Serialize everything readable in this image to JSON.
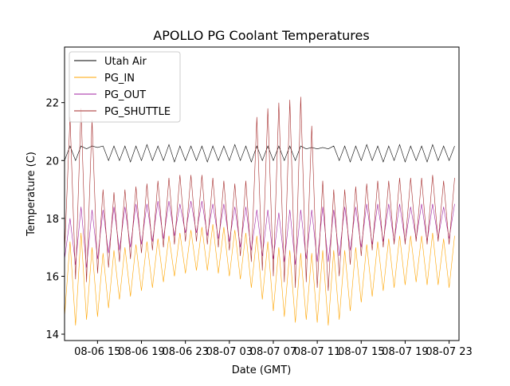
{
  "chart_data": {
    "type": "line",
    "title": "APOLLO PG Coolant Temperatures",
    "xlabel": "Date (GMT)",
    "ylabel": "Temperature (C)",
    "x_units": "hours since 08-06 00:00 GMT",
    "xlim": [
      12,
      47.9
    ],
    "ylim": [
      13.78,
      23.92
    ],
    "x_ticks": [
      {
        "value": 15,
        "label": "08-06 15"
      },
      {
        "value": 19,
        "label": "08-06 19"
      },
      {
        "value": 23,
        "label": "08-06 23"
      },
      {
        "value": 27,
        "label": "08-07 03"
      },
      {
        "value": 31,
        "label": "08-07 07"
      },
      {
        "value": 35,
        "label": "08-07 11"
      },
      {
        "value": 39,
        "label": "08-07 15"
      },
      {
        "value": 43,
        "label": "08-07 19"
      },
      {
        "value": 47,
        "label": "08-07 23"
      }
    ],
    "y_ticks": [
      {
        "value": 14,
        "label": "14"
      },
      {
        "value": 16,
        "label": "16"
      },
      {
        "value": 18,
        "label": "18"
      },
      {
        "value": 20,
        "label": "20"
      },
      {
        "value": 22,
        "label": "22"
      }
    ],
    "grid": false,
    "legend_position": "top-left",
    "x_start": 12,
    "x_step": 0.5,
    "series": [
      {
        "name": "Utah Air",
        "color": "#000000",
        "values": [
          20.0,
          20.5,
          20.0,
          20.5,
          20.4,
          20.5,
          20.45,
          20.5,
          20.0,
          20.5,
          20.0,
          20.5,
          19.95,
          20.5,
          20.0,
          20.55,
          20.0,
          20.5,
          20.0,
          20.55,
          19.95,
          20.5,
          20.0,
          20.5,
          20.0,
          20.5,
          19.95,
          20.5,
          20.0,
          20.5,
          20.0,
          20.55,
          20.0,
          20.5,
          19.95,
          20.5,
          20.0,
          20.5,
          20.0,
          20.5,
          20.0,
          20.5,
          20.0,
          20.5,
          20.4,
          20.45,
          20.4,
          20.45,
          20.4,
          20.5,
          20.0,
          20.5,
          19.95,
          20.5,
          20.0,
          20.55,
          20.0,
          20.5,
          19.95,
          20.5,
          20.0,
          20.55,
          19.95,
          20.5,
          20.0,
          20.5,
          19.95,
          20.55,
          20.0,
          20.5,
          20.0,
          20.5
        ]
      },
      {
        "name": "PG_IN",
        "color": "#ffa500",
        "values": [
          14.6,
          17.2,
          14.3,
          17.5,
          14.5,
          17.0,
          14.6,
          16.8,
          14.9,
          16.9,
          15.2,
          17.0,
          15.3,
          17.1,
          15.5,
          17.2,
          15.6,
          17.3,
          15.8,
          17.4,
          16.0,
          17.5,
          16.1,
          17.6,
          16.2,
          17.7,
          16.2,
          17.8,
          16.1,
          17.7,
          16.0,
          17.6,
          15.9,
          17.5,
          15.6,
          17.4,
          15.2,
          17.2,
          14.8,
          17.0,
          14.6,
          16.9,
          14.4,
          16.8,
          14.5,
          16.8,
          14.4,
          16.9,
          14.3,
          16.9,
          14.5,
          16.9,
          14.8,
          17.0,
          15.1,
          17.1,
          15.3,
          17.2,
          15.5,
          17.3,
          15.6,
          17.4,
          15.7,
          17.4,
          15.8,
          17.4,
          15.7,
          17.5,
          15.7,
          17.3,
          15.6,
          17.4
        ]
      },
      {
        "name": "PG_OUT",
        "color": "#a020a0",
        "values": [
          16.6,
          18.0,
          16.4,
          18.4,
          16.3,
          18.3,
          16.6,
          18.3,
          16.8,
          18.4,
          16.9,
          18.4,
          17.0,
          18.5,
          17.1,
          18.5,
          17.2,
          18.6,
          17.3,
          18.6,
          17.4,
          18.5,
          17.5,
          18.6,
          17.5,
          18.6,
          17.4,
          18.5,
          17.3,
          18.5,
          17.2,
          18.4,
          17.0,
          18.4,
          16.9,
          18.3,
          16.7,
          18.3,
          16.6,
          18.2,
          16.5,
          18.3,
          16.4,
          18.3,
          16.6,
          18.3,
          16.5,
          18.4,
          16.5,
          18.3,
          16.7,
          18.4,
          16.9,
          18.4,
          17.0,
          18.5,
          17.1,
          18.5,
          17.2,
          18.5,
          17.2,
          18.5,
          17.2,
          18.4,
          17.3,
          18.5,
          17.2,
          18.5,
          17.3,
          18.4,
          17.3,
          18.5
        ]
      },
      {
        "name": "PG_SHUTTLE",
        "color": "#a52a2a",
        "values": [
          16.8,
          21.5,
          15.9,
          21.8,
          15.8,
          21.4,
          16.1,
          19.0,
          16.3,
          18.9,
          16.5,
          19.0,
          16.6,
          19.1,
          16.8,
          19.2,
          16.9,
          19.3,
          17.0,
          19.4,
          17.1,
          19.5,
          17.2,
          19.5,
          17.2,
          19.5,
          17.1,
          19.4,
          17.0,
          19.3,
          16.9,
          19.2,
          16.7,
          19.3,
          16.5,
          21.5,
          16.2,
          21.8,
          16.0,
          22.0,
          15.8,
          22.1,
          15.6,
          22.2,
          15.8,
          21.2,
          15.6,
          19.3,
          15.5,
          19.0,
          16.0,
          19.0,
          16.4,
          19.1,
          16.7,
          19.2,
          16.9,
          19.3,
          17.0,
          19.3,
          17.1,
          19.4,
          17.1,
          19.4,
          17.2,
          19.4,
          17.1,
          19.5,
          17.2,
          19.3,
          17.1,
          19.4
        ]
      }
    ]
  }
}
